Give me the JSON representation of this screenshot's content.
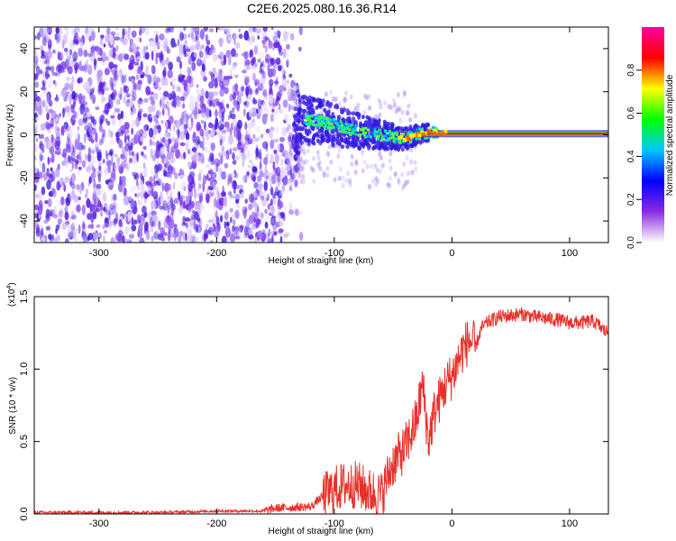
{
  "title": "C2E6.2025.080.16.36.R14",
  "chart_data": [
    {
      "type": "heatmap",
      "xlabel": "Height of straight line (km)",
      "ylabel": "Frequency (Hz)",
      "xlim": [
        -355,
        133
      ],
      "ylim": [
        -50,
        50
      ],
      "xticks": [
        -300,
        -200,
        -100,
        0,
        100
      ],
      "xtick_labels": [
        "-300",
        "-200",
        "-100",
        "0",
        "100"
      ],
      "yticks": [
        -40,
        -20,
        0,
        20,
        40
      ],
      "ytick_labels": [
        "-40",
        "-20",
        "0",
        "20",
        "40"
      ],
      "grid": false,
      "signal_trace": {
        "x": [
          -130,
          -110,
          -90,
          -75,
          -60,
          -50,
          -40,
          -30,
          -20,
          -10,
          0,
          50,
          100,
          133
        ],
        "y": [
          7,
          6,
          3,
          1,
          0,
          -1,
          -2,
          0,
          1,
          1,
          1,
          0.5,
          0.5,
          0.5
        ]
      },
      "colorbar": {
        "label": "Normalized spectral amplitude",
        "range": [
          0.0,
          1.0
        ],
        "ticks": [
          0.0,
          0.2,
          0.4,
          0.6,
          0.8
        ],
        "tick_labels": [
          "0.0",
          "0.2",
          "0.4",
          "0.6",
          "0.8"
        ],
        "colors": [
          "#ffffff",
          "#8a2be2",
          "#0000ff",
          "#00c8ff",
          "#00ff00",
          "#ffff00",
          "#ff0000",
          "#ff00a0"
        ]
      }
    },
    {
      "type": "line",
      "xlabel": "Height of straight line (km)",
      "ylabel": "SNR (10 * v/v)",
      "multiplier_label": "(x10",
      "multiplier_exp": "4",
      "xlim": [
        -355,
        133
      ],
      "ylim": [
        0,
        1.5
      ],
      "xticks": [
        -300,
        -200,
        -100,
        0,
        100
      ],
      "xtick_labels": [
        "-300",
        "-200",
        "-100",
        "0",
        "100"
      ],
      "yticks": [
        0.0,
        0.5,
        1.0,
        1.5
      ],
      "ytick_labels": [
        "0.0",
        "0.5",
        "1.0",
        "1.5"
      ],
      "grid": false,
      "series": [
        {
          "color": "#e8302a",
          "x": [
            -355,
            -300,
            -250,
            -200,
            -160,
            -150,
            -120,
            -110,
            -100,
            -90,
            -80,
            -70,
            -60,
            -55,
            -50,
            -45,
            -40,
            -35,
            -30,
            -25,
            -20,
            -15,
            -10,
            -5,
            0,
            5,
            10,
            15,
            20,
            25,
            30,
            40,
            50,
            60,
            70,
            80,
            90,
            100,
            110,
            120,
            125,
            130,
            133
          ],
          "y": [
            0.01,
            0.01,
            0.01,
            0.02,
            0.02,
            0.04,
            0.05,
            0.12,
            0.17,
            0.2,
            0.2,
            0.15,
            0.13,
            0.25,
            0.35,
            0.4,
            0.45,
            0.55,
            0.65,
            0.9,
            0.5,
            0.7,
            0.8,
            0.9,
            0.95,
            1.05,
            1.15,
            1.2,
            1.15,
            1.28,
            1.32,
            1.36,
            1.37,
            1.38,
            1.36,
            1.35,
            1.34,
            1.32,
            1.32,
            1.33,
            1.3,
            1.26,
            1.26
          ]
        }
      ]
    }
  ]
}
